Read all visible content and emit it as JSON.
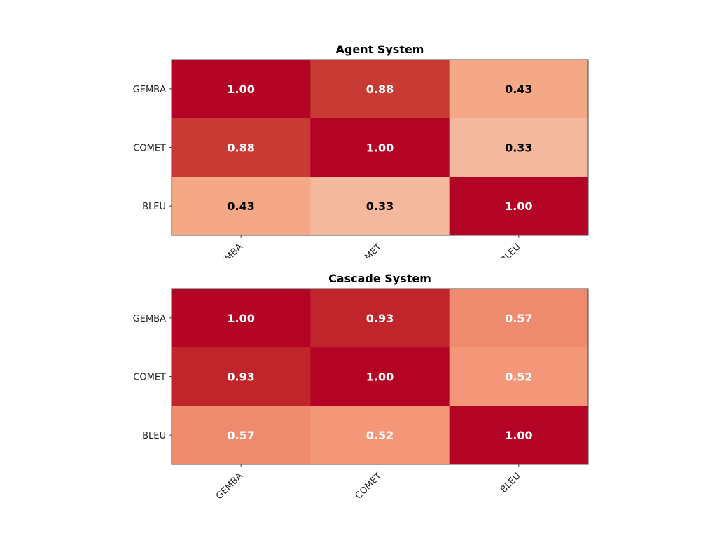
{
  "chart_data": [
    {
      "type": "heatmap",
      "title": "Agent System",
      "x_categories": [
        "GEMBA",
        "COMET",
        "BLEU"
      ],
      "y_categories": [
        "GEMBA",
        "COMET",
        "BLEU"
      ],
      "values": [
        [
          1.0,
          0.88,
          0.43
        ],
        [
          0.88,
          1.0,
          0.33
        ],
        [
          0.43,
          0.33,
          1.0
        ]
      ],
      "value_format": "0.00",
      "colormap": "red scale (light salmon to dark red #b40426)",
      "x_tick_labels_partially_hidden": true
    },
    {
      "type": "heatmap",
      "title": "Cascade System",
      "x_categories": [
        "GEMBA",
        "COMET",
        "BLEU"
      ],
      "y_categories": [
        "GEMBA",
        "COMET",
        "BLEU"
      ],
      "values": [
        [
          1.0,
          0.93,
          0.57
        ],
        [
          0.93,
          1.0,
          0.52
        ],
        [
          0.57,
          0.52,
          1.0
        ]
      ],
      "value_format": "0.00",
      "colormap": "red scale (light salmon to dark red #b40426)"
    }
  ]
}
